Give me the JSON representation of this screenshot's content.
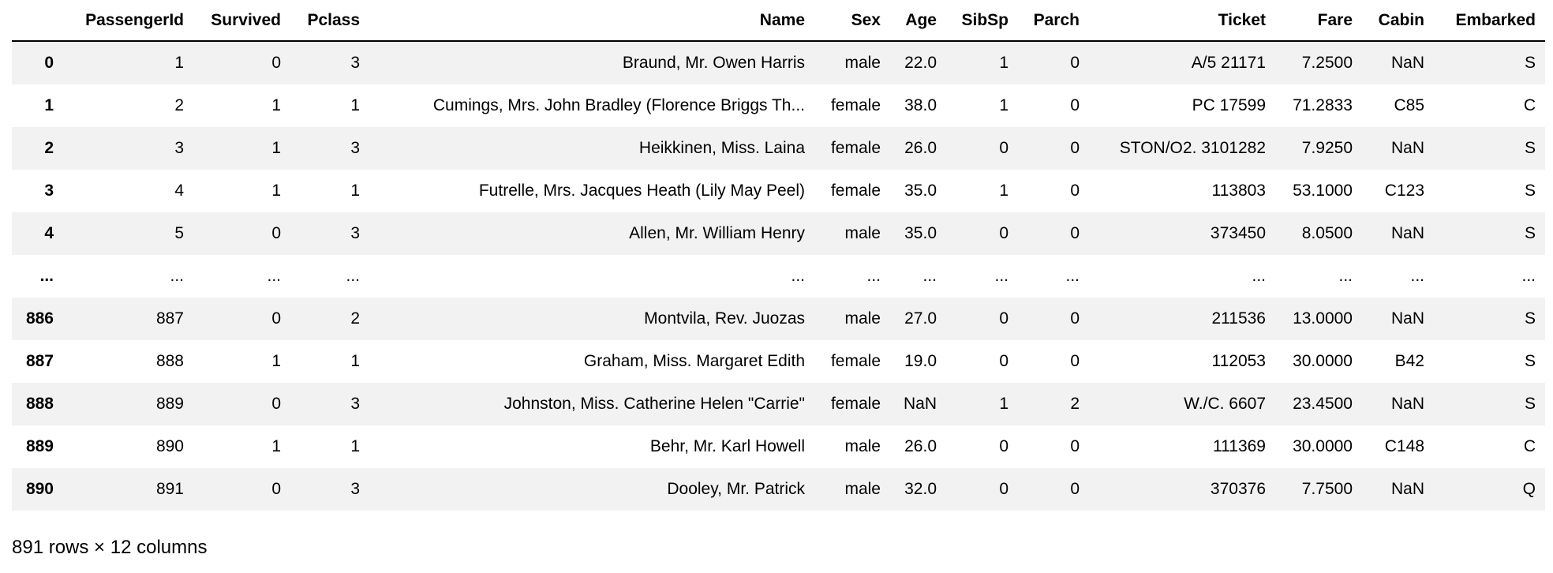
{
  "columns": [
    "",
    "PassengerId",
    "Survived",
    "Pclass",
    "Name",
    "Sex",
    "Age",
    "SibSp",
    "Parch",
    "Ticket",
    "Fare",
    "Cabin",
    "Embarked"
  ],
  "rows": [
    [
      "0",
      "1",
      "0",
      "3",
      "Braund, Mr. Owen Harris",
      "male",
      "22.0",
      "1",
      "0",
      "A/5 21171",
      "7.2500",
      "NaN",
      "S"
    ],
    [
      "1",
      "2",
      "1",
      "1",
      "Cumings, Mrs. John Bradley (Florence Briggs Th...",
      "female",
      "38.0",
      "1",
      "0",
      "PC 17599",
      "71.2833",
      "C85",
      "C"
    ],
    [
      "2",
      "3",
      "1",
      "3",
      "Heikkinen, Miss. Laina",
      "female",
      "26.0",
      "0",
      "0",
      "STON/O2. 3101282",
      "7.9250",
      "NaN",
      "S"
    ],
    [
      "3",
      "4",
      "1",
      "1",
      "Futrelle, Mrs. Jacques Heath (Lily May Peel)",
      "female",
      "35.0",
      "1",
      "0",
      "113803",
      "53.1000",
      "C123",
      "S"
    ],
    [
      "4",
      "5",
      "0",
      "3",
      "Allen, Mr. William Henry",
      "male",
      "35.0",
      "0",
      "0",
      "373450",
      "8.0500",
      "NaN",
      "S"
    ],
    [
      "...",
      "...",
      "...",
      "...",
      "...",
      "...",
      "...",
      "...",
      "...",
      "...",
      "...",
      "...",
      "..."
    ],
    [
      "886",
      "887",
      "0",
      "2",
      "Montvila, Rev. Juozas",
      "male",
      "27.0",
      "0",
      "0",
      "211536",
      "13.0000",
      "NaN",
      "S"
    ],
    [
      "887",
      "888",
      "1",
      "1",
      "Graham, Miss. Margaret Edith",
      "female",
      "19.0",
      "0",
      "0",
      "112053",
      "30.0000",
      "B42",
      "S"
    ],
    [
      "888",
      "889",
      "0",
      "3",
      "Johnston, Miss. Catherine Helen \"Carrie\"",
      "female",
      "NaN",
      "1",
      "2",
      "W./C. 6607",
      "23.4500",
      "NaN",
      "S"
    ],
    [
      "889",
      "890",
      "1",
      "1",
      "Behr, Mr. Karl Howell",
      "male",
      "26.0",
      "0",
      "0",
      "111369",
      "30.0000",
      "C148",
      "C"
    ],
    [
      "890",
      "891",
      "0",
      "3",
      "Dooley, Mr. Patrick",
      "male",
      "32.0",
      "0",
      "0",
      "370376",
      "7.7500",
      "NaN",
      "Q"
    ]
  ],
  "footer": "891 rows × 12 columns",
  "colors": {
    "stripe": "#f2f2f2",
    "header_rule": "#000000"
  }
}
